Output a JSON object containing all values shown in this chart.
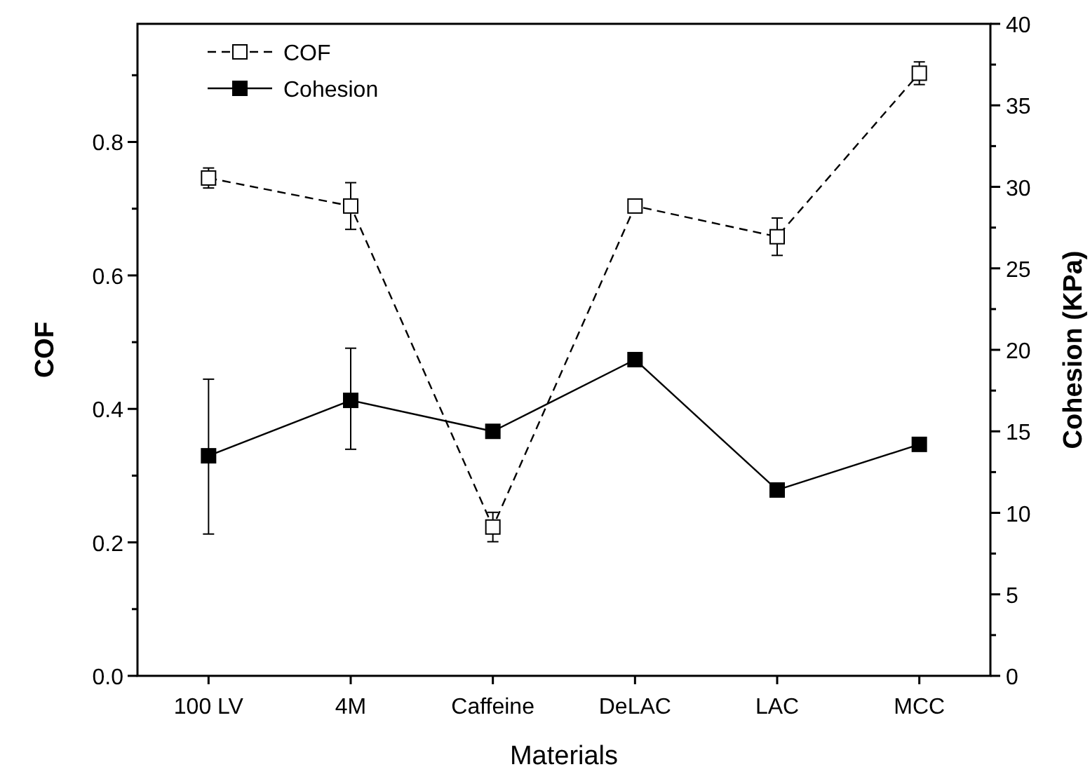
{
  "chart_data": {
    "type": "line",
    "xlabel": "Materials",
    "ylabel": "COF",
    "y2label": "Cohesion (KPa)",
    "categories": [
      "100 LV",
      "4M",
      "Caffeine",
      "DeLAC",
      "LAC",
      "MCC"
    ],
    "series": [
      {
        "name": "COF",
        "color": "#000000",
        "line_style": "dashed",
        "values": [
          0.746,
          0.704,
          0.223,
          0.704,
          0.658,
          0.903
        ],
        "errors": [
          0.015,
          0.035,
          0.022,
          null,
          0.028,
          0.017
        ]
      },
      {
        "name": "Cohesion",
        "color": "#000000",
        "line_style": "solid",
        "axis": "y2",
        "values": [
          13.5,
          16.9,
          15.0,
          19.4,
          11.4,
          14.2
        ],
        "errors": [
          [
            8.7,
            18.2
          ],
          [
            13.9,
            20.1
          ],
          null,
          null,
          [
            11.1,
            11.7
          ],
          null
        ]
      }
    ],
    "ylim": [
      0,
      0.977
    ],
    "yticks": [
      {
        "value": 0,
        "label": "0.0"
      },
      {
        "value": 0.1,
        "label": null
      },
      {
        "value": 0.2,
        "label": "0.2"
      },
      {
        "value": 0.3,
        "label": null
      },
      {
        "value": 0.4,
        "label": "0.4"
      },
      {
        "value": 0.5,
        "label": null
      },
      {
        "value": 0.6,
        "label": "0.6"
      },
      {
        "value": 0.7,
        "label": null
      },
      {
        "value": 0.8,
        "label": "0.8"
      },
      {
        "value": 0.9,
        "label": null
      }
    ],
    "y2lim": [
      0,
      40
    ],
    "y2ticks": [
      0,
      {
        "value": 2.5,
        "label": null
      },
      5,
      {
        "value": 7.5,
        "label": null
      },
      10,
      {
        "value": 12.5,
        "label": null
      },
      15,
      {
        "value": 17.5,
        "label": null
      },
      20,
      {
        "value": 22.5,
        "label": null
      },
      25,
      {
        "value": 27.5,
        "label": null
      },
      30,
      {
        "value": 32.5,
        "label": null
      },
      35,
      {
        "value": 37.5,
        "label": null
      },
      40
    ],
    "marker": "square",
    "legend": "top left",
    "grid": false
  }
}
